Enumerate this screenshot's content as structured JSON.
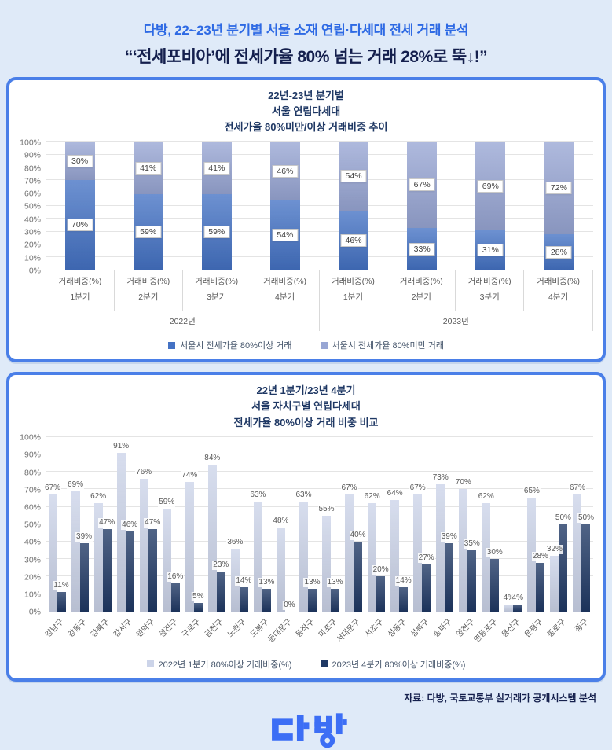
{
  "header": {
    "title": "다방, 22~23년 분기별 서울 소재 연립·다세대 전세 거래 분석",
    "subtitle": "“‘전세포비아’에 전세가율 80% 넘는 거래 28%로 뚝↓!”"
  },
  "footer": {
    "source": "자료: 다방, 국토교통부 실거래가 공개시스템 분석",
    "logo_name": "다방"
  },
  "colors": {
    "page_bg": "#dfeaf8",
    "panel_border": "#4a7fe8",
    "header_blue": "#2e6ae4",
    "header_navy": "#141f4d",
    "title_navy": "#1f3864",
    "brand_blue": "#3c6ef5"
  },
  "chart_data": [
    {
      "type": "bar",
      "stacked": true,
      "title_lines": [
        "22년-23년 분기별",
        "서울 연립다세대",
        "전세가율 80%미만/이상 거래비중 추이"
      ],
      "categories": [
        "1분기",
        "2분기",
        "3분기",
        "4분기",
        "1분기",
        "2분기",
        "3분기",
        "4분기"
      ],
      "category_sub_label": "거래비중(%)",
      "groups": [
        {
          "label": "2022년",
          "span": 4
        },
        {
          "label": "2023년",
          "span": 4
        }
      ],
      "series": [
        {
          "name": "서울시 전세가율 80%이상 거래",
          "color": "#4472c4",
          "values": [
            70,
            59,
            59,
            54,
            46,
            33,
            31,
            28
          ]
        },
        {
          "name": "서울시 전세가율 80%미만 거래",
          "color": "#98a6d4",
          "values": [
            30,
            41,
            41,
            46,
            54,
            67,
            69,
            72
          ]
        }
      ],
      "ylim": [
        0,
        100
      ],
      "ytick_step": 10,
      "grid": true,
      "legend_position": "bottom"
    },
    {
      "type": "bar",
      "stacked": false,
      "title_lines": [
        "22년 1분기/23년 4분기",
        "서울 자치구별 연립다세대",
        "전세가율 80%이상 거래 비중 비교"
      ],
      "categories": [
        "강남구",
        "강동구",
        "강북구",
        "강서구",
        "관악구",
        "광진구",
        "구로구",
        "금천구",
        "노원구",
        "도봉구",
        "동대문구",
        "동작구",
        "마포구",
        "서대문구",
        "서초구",
        "성동구",
        "성북구",
        "송파구",
        "양천구",
        "영등포구",
        "용산구",
        "은평구",
        "종로구",
        "중구"
      ],
      "series": [
        {
          "name": "2022년 1분기 80%이상 거래비중(%)",
          "color": "#ccd4e9",
          "values": [
            67,
            69,
            62,
            91,
            76,
            59,
            74,
            84,
            36,
            63,
            48,
            63,
            55,
            67,
            62,
            64,
            67,
            73,
            70,
            62,
            4,
            65,
            32,
            67
          ]
        },
        {
          "name": "2023년 4분기 80%이상 거래비중(%)",
          "color": "#1f3864",
          "values": [
            11,
            39,
            47,
            46,
            47,
            16,
            5,
            23,
            14,
            13,
            0,
            13,
            13,
            40,
            20,
            14,
            27,
            39,
            35,
            30,
            4,
            28,
            50,
            50
          ]
        }
      ],
      "ylim": [
        0,
        100
      ],
      "ytick_step": 10,
      "grid": true,
      "legend_position": "bottom"
    }
  ]
}
